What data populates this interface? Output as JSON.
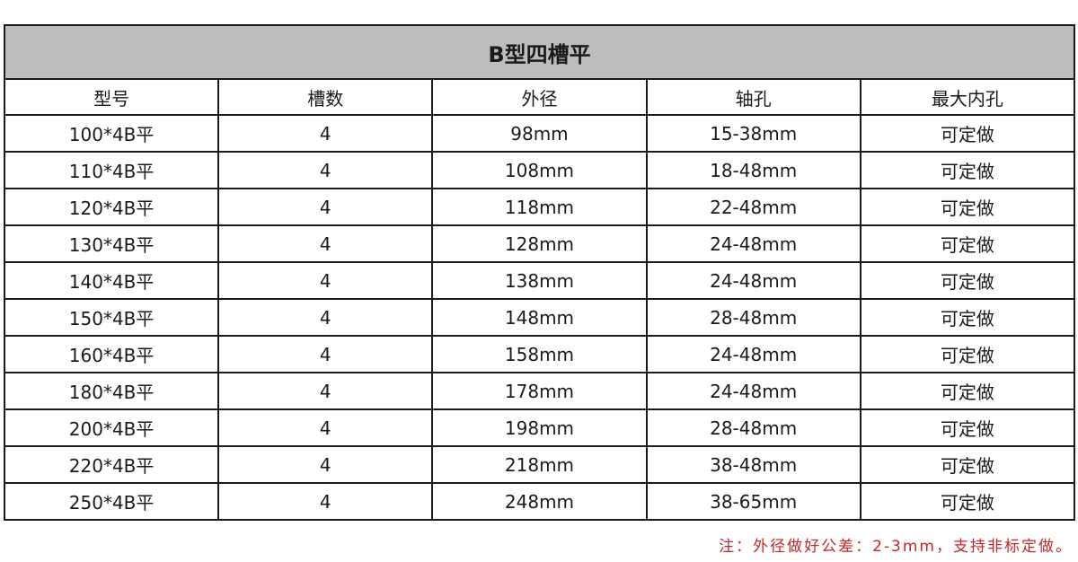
{
  "title": "B型四槽平",
  "columns": [
    "型号",
    "槽数",
    "外径",
    "轴孔",
    "最大内孔"
  ],
  "rows": [
    [
      "100*4B平",
      "4",
      "98mm",
      "15-38mm",
      "可定做"
    ],
    [
      "110*4B平",
      "4",
      "108mm",
      "18-48mm",
      "可定做"
    ],
    [
      "120*4B平",
      "4",
      "118mm",
      "22-48mm",
      "可定做"
    ],
    [
      "130*4B平",
      "4",
      "128mm",
      "24-48mm",
      "可定做"
    ],
    [
      "140*4B平",
      "4",
      "138mm",
      "24-48mm",
      "可定做"
    ],
    [
      "150*4B平",
      "4",
      "148mm",
      "28-48mm",
      "可定做"
    ],
    [
      "160*4B平",
      "4",
      "158mm",
      "24-48mm",
      "可定做"
    ],
    [
      "180*4B平",
      "4",
      "178mm",
      "24-48mm",
      "可定做"
    ],
    [
      "200*4B平",
      "4",
      "198mm",
      "28-48mm",
      "可定做"
    ],
    [
      "220*4B平",
      "4",
      "218mm",
      "38-48mm",
      "可定做"
    ],
    [
      "250*4B平",
      "4",
      "248mm",
      "38-65mm",
      "可定做"
    ]
  ],
  "note": "注：外径做好公差：2-3mm，支持非标定做。",
  "colors": {
    "title_bg": "#bdbdbd",
    "note": "#c0282a",
    "border": "#1a1a1a"
  }
}
